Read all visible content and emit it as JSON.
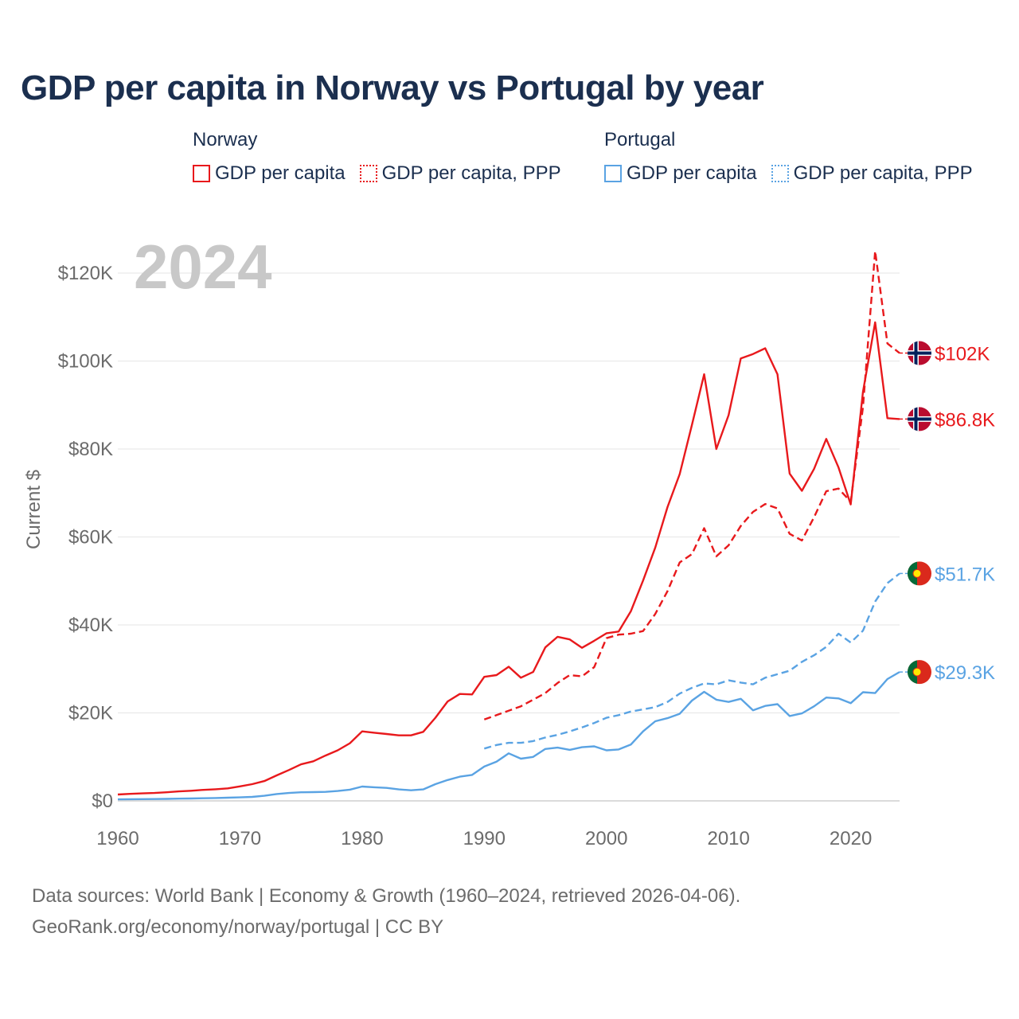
{
  "title": "GDP per capita in Norway vs Portugal by year",
  "legend": {
    "norway": {
      "name": "Norway",
      "items": [
        "GDP per capita",
        "GDP per capita, PPP"
      ],
      "color": "#e8191c"
    },
    "portugal": {
      "name": "Portugal",
      "items": [
        "GDP per capita",
        "GDP per capita, PPP"
      ],
      "color": "#5aa3e3"
    }
  },
  "year_label": "2024",
  "footer": {
    "line1": "Data sources: World Bank | Economy & Growth (1960–2024, retrieved 2026-04-06).",
    "line2": "GeoRank.org/economy/norway/portugal | CC BY"
  },
  "end_labels": [
    "$102K",
    "$86.8K",
    "$51.7K",
    "$29.3K"
  ],
  "chart_data": {
    "type": "line",
    "title": "GDP per capita in Norway vs Portugal by year",
    "xlabel": "",
    "ylabel": "Current $",
    "xlim": [
      1960,
      2024
    ],
    "ylim": [
      0,
      120000
    ],
    "x_ticks": [
      1960,
      1970,
      1980,
      1990,
      2000,
      2010,
      2020
    ],
    "y_ticks": [
      0,
      20000,
      40000,
      60000,
      80000,
      100000,
      120000
    ],
    "y_tick_labels": [
      "$0",
      "$20K",
      "$40K",
      "$60K",
      "$80K",
      "$100K",
      "$120K"
    ],
    "grid": true,
    "series": [
      {
        "name": "Norway GDP per capita",
        "country": "Norway",
        "style": "solid",
        "color": "#e8191c",
        "end_label": "$86.8K",
        "x": [
          1960,
          1961,
          1962,
          1963,
          1964,
          1965,
          1966,
          1967,
          1968,
          1969,
          1970,
          1971,
          1972,
          1973,
          1974,
          1975,
          1976,
          1977,
          1978,
          1979,
          1980,
          1981,
          1982,
          1983,
          1984,
          1985,
          1986,
          1987,
          1988,
          1989,
          1990,
          1991,
          1992,
          1993,
          1994,
          1995,
          1996,
          1997,
          1998,
          1999,
          2000,
          2001,
          2002,
          2003,
          2004,
          2005,
          2006,
          2007,
          2008,
          2009,
          2010,
          2011,
          2012,
          2013,
          2014,
          2015,
          2016,
          2017,
          2018,
          2019,
          2020,
          2021,
          2022,
          2023,
          2024
        ],
        "values": [
          1450,
          1600,
          1700,
          1800,
          1950,
          2150,
          2300,
          2500,
          2650,
          2850,
          3300,
          3800,
          4500,
          5800,
          7000,
          8300,
          9000,
          10300,
          11500,
          13100,
          15800,
          15500,
          15200,
          14900,
          14900,
          15700,
          18900,
          22600,
          24300,
          24200,
          28200,
          28600,
          30500,
          28000,
          29300,
          34900,
          37300,
          36700,
          34800,
          36400,
          38100,
          38500,
          43100,
          50100,
          57600,
          66800,
          74300,
          85500,
          97000,
          80000,
          87700,
          100600,
          101600,
          102900,
          97000,
          74400,
          70500,
          75500,
          82300,
          75800,
          67400,
          93000,
          108800,
          87000,
          86800
        ]
      },
      {
        "name": "Norway GDP per capita, PPP",
        "country": "Norway",
        "style": "dashed",
        "color": "#e8191c",
        "end_label": "$102K",
        "x": [
          1990,
          1991,
          1992,
          1993,
          1994,
          1995,
          1996,
          1997,
          1998,
          1999,
          2000,
          2001,
          2002,
          2003,
          2004,
          2005,
          2006,
          2007,
          2008,
          2009,
          2010,
          2011,
          2012,
          2013,
          2014,
          2015,
          2016,
          2017,
          2018,
          2019,
          2020,
          2021,
          2022,
          2023,
          2024
        ],
        "values": [
          18500,
          19500,
          20500,
          21500,
          23000,
          24500,
          26800,
          28600,
          28300,
          30400,
          37000,
          37800,
          38000,
          38600,
          42500,
          47700,
          54200,
          56100,
          62000,
          55600,
          58100,
          62500,
          65700,
          67500,
          66500,
          60700,
          59200,
          64500,
          70400,
          71000,
          68000,
          89500,
          125000,
          104000,
          101800
        ]
      },
      {
        "name": "Portugal GDP per capita",
        "country": "Portugal",
        "style": "solid",
        "color": "#5aa3e3",
        "end_label": "$29.3K",
        "x": [
          1960,
          1961,
          1962,
          1963,
          1964,
          1965,
          1966,
          1967,
          1968,
          1969,
          1970,
          1971,
          1972,
          1973,
          1974,
          1975,
          1976,
          1977,
          1978,
          1979,
          1980,
          1981,
          1982,
          1983,
          1984,
          1985,
          1986,
          1987,
          1988,
          1989,
          1990,
          1991,
          1992,
          1993,
          1994,
          1995,
          1996,
          1997,
          1998,
          1999,
          2000,
          2001,
          2002,
          2003,
          2004,
          2005,
          2006,
          2007,
          2008,
          2009,
          2010,
          2011,
          2012,
          2013,
          2014,
          2015,
          2016,
          2017,
          2018,
          2019,
          2020,
          2021,
          2022,
          2023,
          2024
        ],
        "values": [
          350,
          380,
          400,
          420,
          460,
          500,
          550,
          600,
          650,
          720,
          800,
          900,
          1150,
          1550,
          1800,
          1950,
          2000,
          2050,
          2250,
          2550,
          3250,
          3100,
          2950,
          2600,
          2400,
          2600,
          3800,
          4750,
          5500,
          5900,
          7800,
          8900,
          10800,
          9600,
          10000,
          11800,
          12100,
          11600,
          12200,
          12400,
          11500,
          11700,
          12800,
          15800,
          18100,
          18800,
          19800,
          22800,
          24800,
          23000,
          22500,
          23200,
          20600,
          21600,
          22000,
          19300,
          19900,
          21500,
          23500,
          23300,
          22200,
          24700,
          24500,
          27700,
          29300
        ]
      },
      {
        "name": "Portugal GDP per capita, PPP",
        "country": "Portugal",
        "style": "dashed",
        "color": "#5aa3e3",
        "end_label": "$51.7K",
        "x": [
          1990,
          1991,
          1992,
          1993,
          1994,
          1995,
          1996,
          1997,
          1998,
          1999,
          2000,
          2001,
          2002,
          2003,
          2004,
          2005,
          2006,
          2007,
          2008,
          2009,
          2010,
          2011,
          2012,
          2013,
          2014,
          2015,
          2016,
          2017,
          2018,
          2019,
          2020,
          2021,
          2022,
          2023,
          2024
        ],
        "values": [
          11900,
          12700,
          13200,
          13200,
          13600,
          14400,
          15000,
          15800,
          16700,
          17700,
          18900,
          19500,
          20300,
          20800,
          21300,
          22500,
          24400,
          25700,
          26700,
          26500,
          27400,
          26900,
          26500,
          28000,
          28800,
          29600,
          31600,
          33100,
          35000,
          38000,
          36000,
          38700,
          45300,
          49500,
          51700
        ]
      }
    ]
  }
}
